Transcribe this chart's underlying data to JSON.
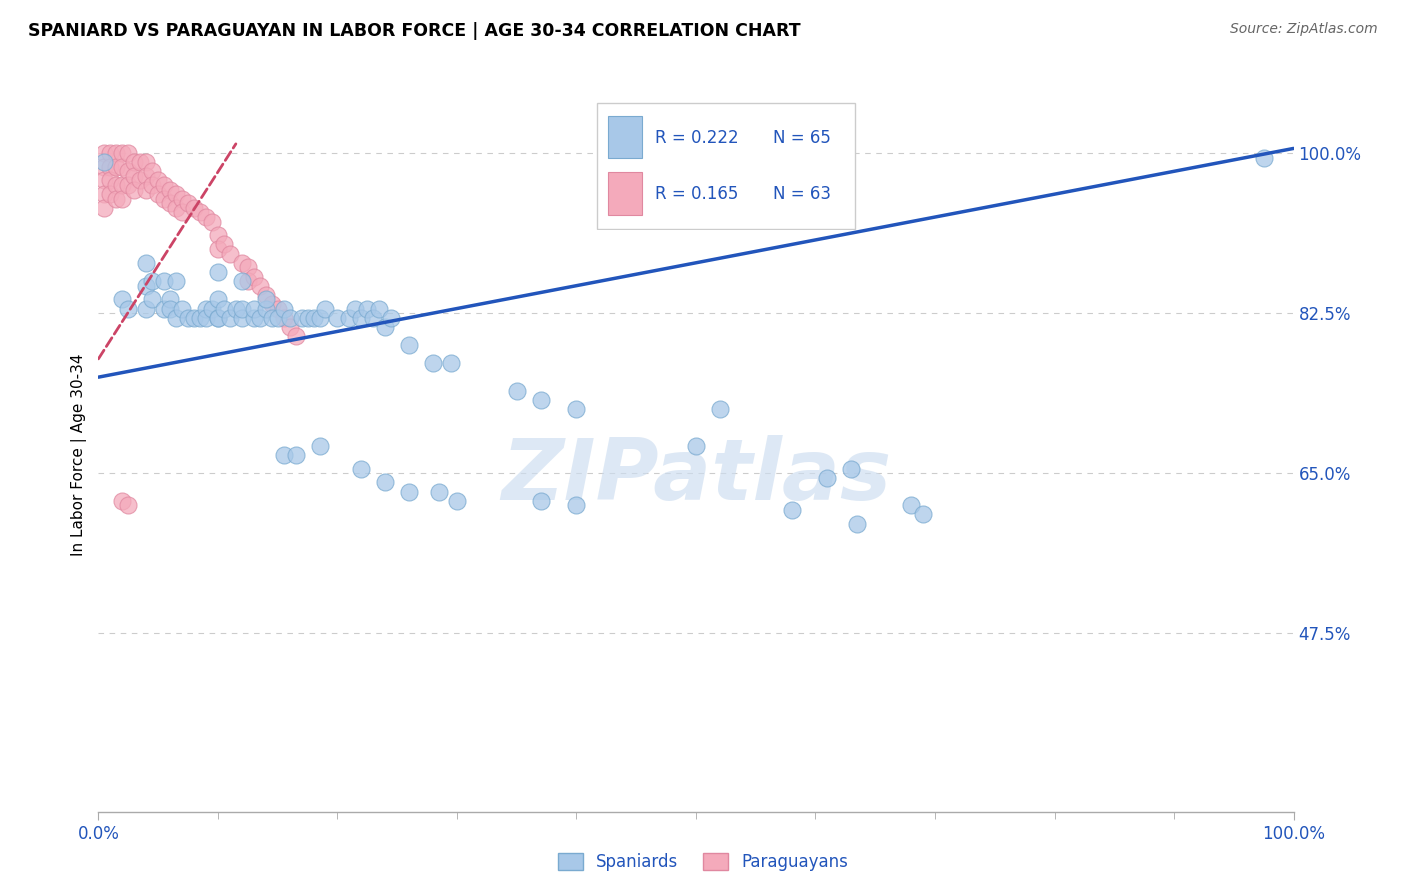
{
  "title": "SPANIARD VS PARAGUAYAN IN LABOR FORCE | AGE 30-34 CORRELATION CHART",
  "source": "Source: ZipAtlas.com",
  "ylabel": "In Labor Force | Age 30-34",
  "xlim": [
    0.0,
    1.0
  ],
  "ylim": [
    0.28,
    1.06
  ],
  "yticks": [
    0.475,
    0.65,
    0.825,
    1.0
  ],
  "ytick_labels": [
    "47.5%",
    "65.0%",
    "82.5%",
    "100.0%"
  ],
  "xtick_labels": [
    "0.0%",
    "100.0%"
  ],
  "legend_r_blue": "R = 0.222",
  "legend_n_blue": "N = 65",
  "legend_r_pink": "R = 0.165",
  "legend_n_pink": "N = 63",
  "blue_color": "#A8C8E8",
  "blue_edge": "#7AAAD0",
  "pink_color": "#F4AABB",
  "pink_edge": "#E088A0",
  "trend_blue_color": "#2255BB",
  "trend_pink_color": "#CC4466",
  "watermark_text": "ZIPatlas",
  "blue_trend_x0": 0.0,
  "blue_trend_y0": 0.755,
  "blue_trend_x1": 1.0,
  "blue_trend_y1": 1.005,
  "pink_trend_x0": 0.0,
  "pink_trend_y0": 0.775,
  "pink_trend_x1": 0.115,
  "pink_trend_y1": 1.01,
  "spaniards_x": [
    0.005,
    0.02,
    0.025,
    0.04,
    0.04,
    0.04,
    0.045,
    0.045,
    0.055,
    0.055,
    0.06,
    0.06,
    0.065,
    0.07,
    0.075,
    0.08,
    0.085,
    0.09,
    0.09,
    0.095,
    0.1,
    0.1,
    0.1,
    0.105,
    0.11,
    0.115,
    0.12,
    0.12,
    0.13,
    0.13,
    0.135,
    0.14,
    0.145,
    0.15,
    0.155,
    0.16,
    0.17,
    0.175,
    0.18,
    0.185,
    0.19,
    0.2,
    0.21,
    0.215,
    0.22,
    0.225,
    0.23,
    0.235,
    0.24,
    0.245,
    0.26,
    0.28,
    0.295,
    0.35,
    0.37,
    0.4,
    0.5,
    0.52,
    0.61,
    0.63,
    0.68,
    0.69,
    0.975
  ],
  "spaniards_y": [
    0.99,
    0.84,
    0.83,
    0.855,
    0.83,
    0.88,
    0.84,
    0.86,
    0.83,
    0.86,
    0.84,
    0.83,
    0.82,
    0.83,
    0.82,
    0.82,
    0.82,
    0.83,
    0.82,
    0.83,
    0.82,
    0.84,
    0.82,
    0.83,
    0.82,
    0.83,
    0.82,
    0.83,
    0.82,
    0.83,
    0.82,
    0.83,
    0.82,
    0.82,
    0.83,
    0.82,
    0.82,
    0.82,
    0.82,
    0.82,
    0.83,
    0.82,
    0.82,
    0.83,
    0.82,
    0.83,
    0.82,
    0.83,
    0.81,
    0.82,
    0.79,
    0.77,
    0.77,
    0.74,
    0.73,
    0.72,
    0.68,
    0.72,
    0.645,
    0.655,
    0.615,
    0.605,
    0.995
  ],
  "spaniards_y_outliers_x": [
    0.065,
    0.1,
    0.12,
    0.14,
    0.155,
    0.165,
    0.185,
    0.22,
    0.24,
    0.26,
    0.285,
    0.3,
    0.37,
    0.4,
    0.58,
    0.635
  ],
  "spaniards_y_outliers_y": [
    0.86,
    0.87,
    0.86,
    0.84,
    0.67,
    0.67,
    0.68,
    0.655,
    0.64,
    0.63,
    0.63,
    0.62,
    0.62,
    0.615,
    0.61,
    0.595
  ],
  "paraguayans_x": [
    0.005,
    0.005,
    0.005,
    0.005,
    0.005,
    0.01,
    0.01,
    0.01,
    0.01,
    0.015,
    0.015,
    0.015,
    0.015,
    0.02,
    0.02,
    0.02,
    0.02,
    0.025,
    0.025,
    0.025,
    0.03,
    0.03,
    0.03,
    0.035,
    0.035,
    0.04,
    0.04,
    0.04,
    0.045,
    0.045,
    0.05,
    0.05,
    0.055,
    0.055,
    0.06,
    0.06,
    0.065,
    0.065,
    0.07,
    0.07,
    0.075,
    0.08,
    0.085,
    0.09,
    0.095,
    0.1,
    0.1,
    0.105,
    0.11,
    0.12,
    0.125,
    0.125,
    0.13,
    0.135,
    0.14,
    0.145,
    0.15,
    0.155,
    0.16,
    0.165,
    0.02,
    0.025
  ],
  "paraguayans_y": [
    1.0,
    0.985,
    0.97,
    0.955,
    0.94,
    1.0,
    0.985,
    0.97,
    0.955,
    1.0,
    0.985,
    0.965,
    0.95,
    1.0,
    0.985,
    0.965,
    0.95,
    1.0,
    0.98,
    0.965,
    0.99,
    0.975,
    0.96,
    0.99,
    0.97,
    0.99,
    0.975,
    0.96,
    0.98,
    0.965,
    0.97,
    0.955,
    0.965,
    0.95,
    0.96,
    0.945,
    0.955,
    0.94,
    0.95,
    0.935,
    0.945,
    0.94,
    0.935,
    0.93,
    0.925,
    0.91,
    0.895,
    0.9,
    0.89,
    0.88,
    0.875,
    0.86,
    0.865,
    0.855,
    0.845,
    0.835,
    0.83,
    0.82,
    0.81,
    0.8,
    0.62,
    0.615
  ]
}
